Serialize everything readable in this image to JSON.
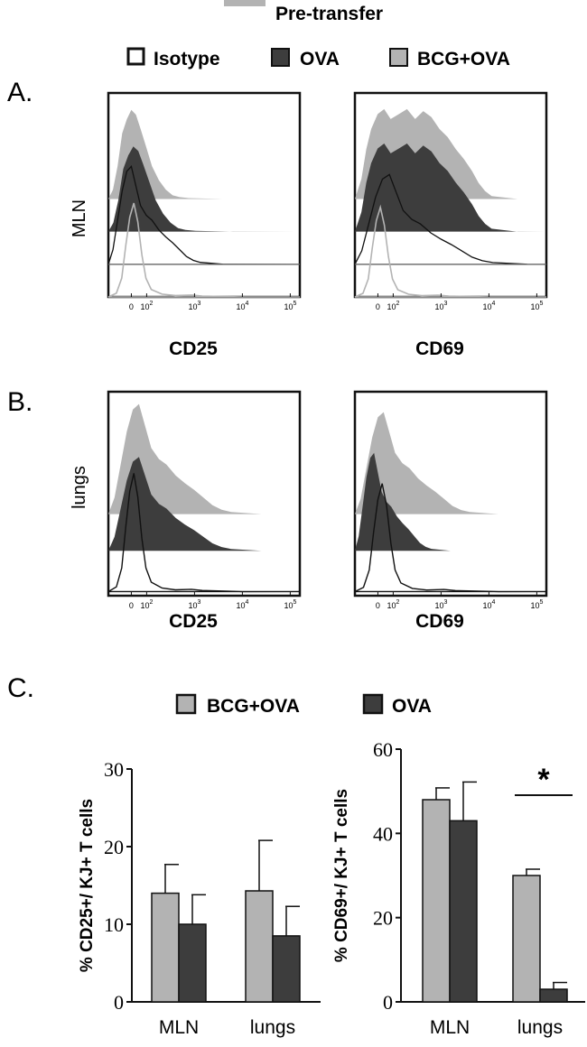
{
  "colors": {
    "light": "#b3b3b3",
    "dark": "#3d3d3d",
    "black": "#111111",
    "white": "#ffffff"
  },
  "legend_top": {
    "pretransfer": "Pre-transfer",
    "items": [
      {
        "label": "Isotype",
        "swatch": "white"
      },
      {
        "label": "OVA",
        "swatch": "dark"
      },
      {
        "label": "BCG+OVA",
        "swatch": "light"
      }
    ]
  },
  "panel_letters": {
    "a": "A.",
    "b": "B.",
    "c": "C."
  },
  "row_labels": {
    "a": "MLN",
    "b": "lungs"
  },
  "histogram_ticks": [
    "0",
    "10",
    "10",
    "10",
    "10"
  ],
  "tick_exponents": [
    "",
    "2",
    "3",
    "4",
    "5"
  ],
  "legend_c": {
    "items": [
      {
        "label": "BCG+OVA",
        "swatch": "light"
      },
      {
        "label": "OVA",
        "swatch": "dark"
      }
    ]
  },
  "chart_data": [
    {
      "type": "histogram",
      "panel": "A",
      "row": "MLN",
      "xlabel": "CD25",
      "series": [
        "BCG+OVA",
        "OVA",
        "Isotype",
        "Pre-transfer"
      ]
    },
    {
      "type": "histogram",
      "panel": "A",
      "row": "MLN",
      "xlabel": "CD69",
      "series": [
        "BCG+OVA",
        "OVA",
        "Isotype",
        "Pre-transfer"
      ]
    },
    {
      "type": "histogram",
      "panel": "B",
      "row": "lungs",
      "xlabel": "CD25",
      "series": [
        "BCG+OVA",
        "OVA",
        "Isotype"
      ]
    },
    {
      "type": "histogram",
      "panel": "B",
      "row": "lungs",
      "xlabel": "CD69",
      "series": [
        "BCG+OVA",
        "OVA",
        "Isotype"
      ]
    },
    {
      "type": "bar",
      "panel": "C",
      "ylabel": "% CD25+/ KJ+ T cells",
      "categories": [
        "MLN",
        "lungs"
      ],
      "ylim": [
        0,
        30
      ],
      "yticks": [
        "0",
        "10",
        "20",
        "30"
      ],
      "series": [
        {
          "name": "BCG+OVA",
          "values": [
            14,
            14.3
          ],
          "errors": [
            3.7,
            6.5
          ]
        },
        {
          "name": "OVA",
          "values": [
            10,
            8.5
          ],
          "errors": [
            3.8,
            3.8
          ]
        }
      ]
    },
    {
      "type": "bar",
      "panel": "C",
      "ylabel": "% CD69+/ KJ+ T cells",
      "categories": [
        "MLN",
        "lungs"
      ],
      "ylim": [
        0,
        60
      ],
      "yticks": [
        "0",
        "20",
        "40",
        "60"
      ],
      "series": [
        {
          "name": "BCG+OVA",
          "values": [
            48,
            30
          ],
          "errors": [
            2.8,
            1.5
          ]
        },
        {
          "name": "OVA",
          "values": [
            43,
            3
          ],
          "errors": [
            9.2,
            1.6
          ]
        }
      ],
      "annotation": "*"
    }
  ]
}
